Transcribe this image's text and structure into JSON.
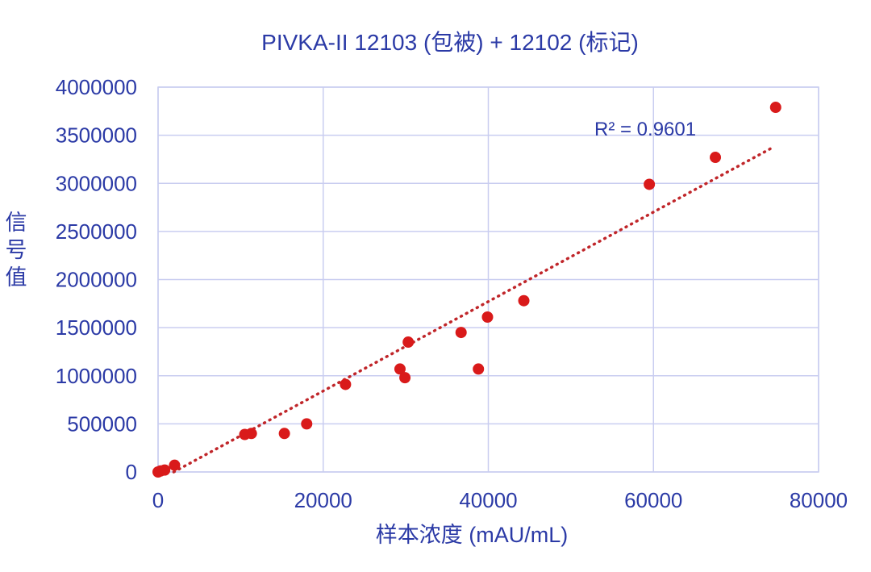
{
  "chart_data": {
    "type": "scatter",
    "title": "PIVKA-II 12103 (包被) + 12102 (标记)",
    "xlabel": "样本浓度 (mAU/mL)",
    "ylabel": "信号值",
    "xlim": [
      0,
      80000
    ],
    "ylim": [
      0,
      4000000
    ],
    "x_ticks": [
      "0",
      "20000",
      "40000",
      "60000",
      "80000"
    ],
    "y_ticks": [
      "0",
      "500000",
      "1000000",
      "1500000",
      "2000000",
      "2500000",
      "3000000",
      "3500000",
      "4000000"
    ],
    "grid": true,
    "marker_color": "#d91a1a",
    "text_color": "#2b3aa6",
    "series": [
      {
        "points": [
          [
            0,
            0
          ],
          [
            300,
            10000
          ],
          [
            800,
            20000
          ],
          [
            2000,
            70000
          ],
          [
            10500,
            390000
          ],
          [
            11300,
            400000
          ],
          [
            15300,
            400000
          ],
          [
            18000,
            500000
          ],
          [
            22700,
            910000
          ],
          [
            29300,
            1070000
          ],
          [
            29900,
            980000
          ],
          [
            30300,
            1350000
          ],
          [
            36700,
            1450000
          ],
          [
            38800,
            1070000
          ],
          [
            39900,
            1610000
          ],
          [
            44300,
            1780000
          ],
          [
            59500,
            2990000
          ],
          [
            67500,
            3270000
          ],
          [
            74800,
            3790000
          ]
        ]
      }
    ],
    "trendline": {
      "style": "dotted",
      "color": "#c0262a",
      "x": [
        1900,
        74600
      ],
      "y": [
        0,
        3380000
      ],
      "r2_label": "R² = 0.9601"
    }
  }
}
